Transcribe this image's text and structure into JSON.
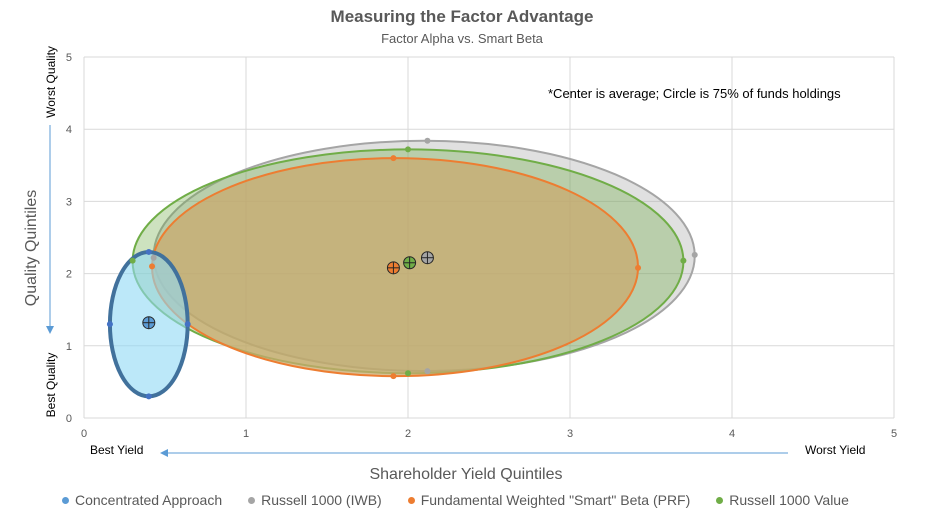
{
  "chart_data": {
    "type": "scatter",
    "title": "Measuring the Factor Advantage",
    "subtitle": "Factor Alpha vs. Smart Beta",
    "xlabel": "Shareholder Yield Quintiles",
    "ylabel": "Quality Quintiles",
    "xlim": [
      0,
      5
    ],
    "ylim": [
      0,
      5
    ],
    "xticks": [
      "0",
      "1",
      "2",
      "3",
      "4",
      "5"
    ],
    "yticks": [
      "0",
      "1",
      "2",
      "3",
      "4",
      "5"
    ],
    "grid": true,
    "annotation": "*Center is average; Circle is 75% of funds holdings",
    "x_left_label": "Best Yield",
    "x_right_label": "Worst Yield",
    "y_top_label": "Worst Quality",
    "y_bottom_label": "Best Quality",
    "legend_position": "bottom",
    "series": [
      {
        "name": "Russell 1000 (IWB)",
        "color": "#a5a5a5",
        "fill": "#a5a5a5",
        "fill_opacity": 0.35,
        "center": [
          2.12,
          2.22
        ],
        "points": [
          [
            2.12,
            3.84
          ],
          [
            3.77,
            2.26
          ],
          [
            2.12,
            0.65
          ],
          [
            0.43,
            2.22
          ]
        ]
      },
      {
        "name": "Russell 1000 Value",
        "color": "#70ad47",
        "fill": "#70ad47",
        "fill_opacity": 0.35,
        "center": [
          2.01,
          2.15
        ],
        "points": [
          [
            2.0,
            3.72
          ],
          [
            3.7,
            2.18
          ],
          [
            2.0,
            0.62
          ],
          [
            0.3,
            2.18
          ]
        ]
      },
      {
        "name": "Fundamental Weighted \"Smart\" Beta (PRF)",
        "color": "#ed7d31",
        "fill": "#c9a96e",
        "fill_opacity": 0.75,
        "center": [
          1.91,
          2.08
        ],
        "points": [
          [
            1.91,
            3.6
          ],
          [
            3.42,
            2.08
          ],
          [
            1.91,
            0.58
          ],
          [
            0.42,
            2.1
          ]
        ]
      },
      {
        "name": "Concentrated Approach",
        "color": "#4472c4",
        "fill": "#8fd9f5",
        "fill_opacity": 0.6,
        "center": [
          0.4,
          1.32
        ],
        "points": [
          [
            0.4,
            2.3
          ],
          [
            0.64,
            1.3
          ],
          [
            0.4,
            0.3
          ],
          [
            0.16,
            1.3
          ]
        ]
      }
    ],
    "legend": [
      {
        "label": "Concentrated Approach",
        "color": "#5b9bd5"
      },
      {
        "label": "Russell 1000 (IWB)",
        "color": "#a5a5a5"
      },
      {
        "label": "Fundamental Weighted \"Smart\" Beta (PRF)",
        "color": "#ed7d31"
      },
      {
        "label": "Russell 1000 Value",
        "color": "#70ad47"
      }
    ]
  }
}
